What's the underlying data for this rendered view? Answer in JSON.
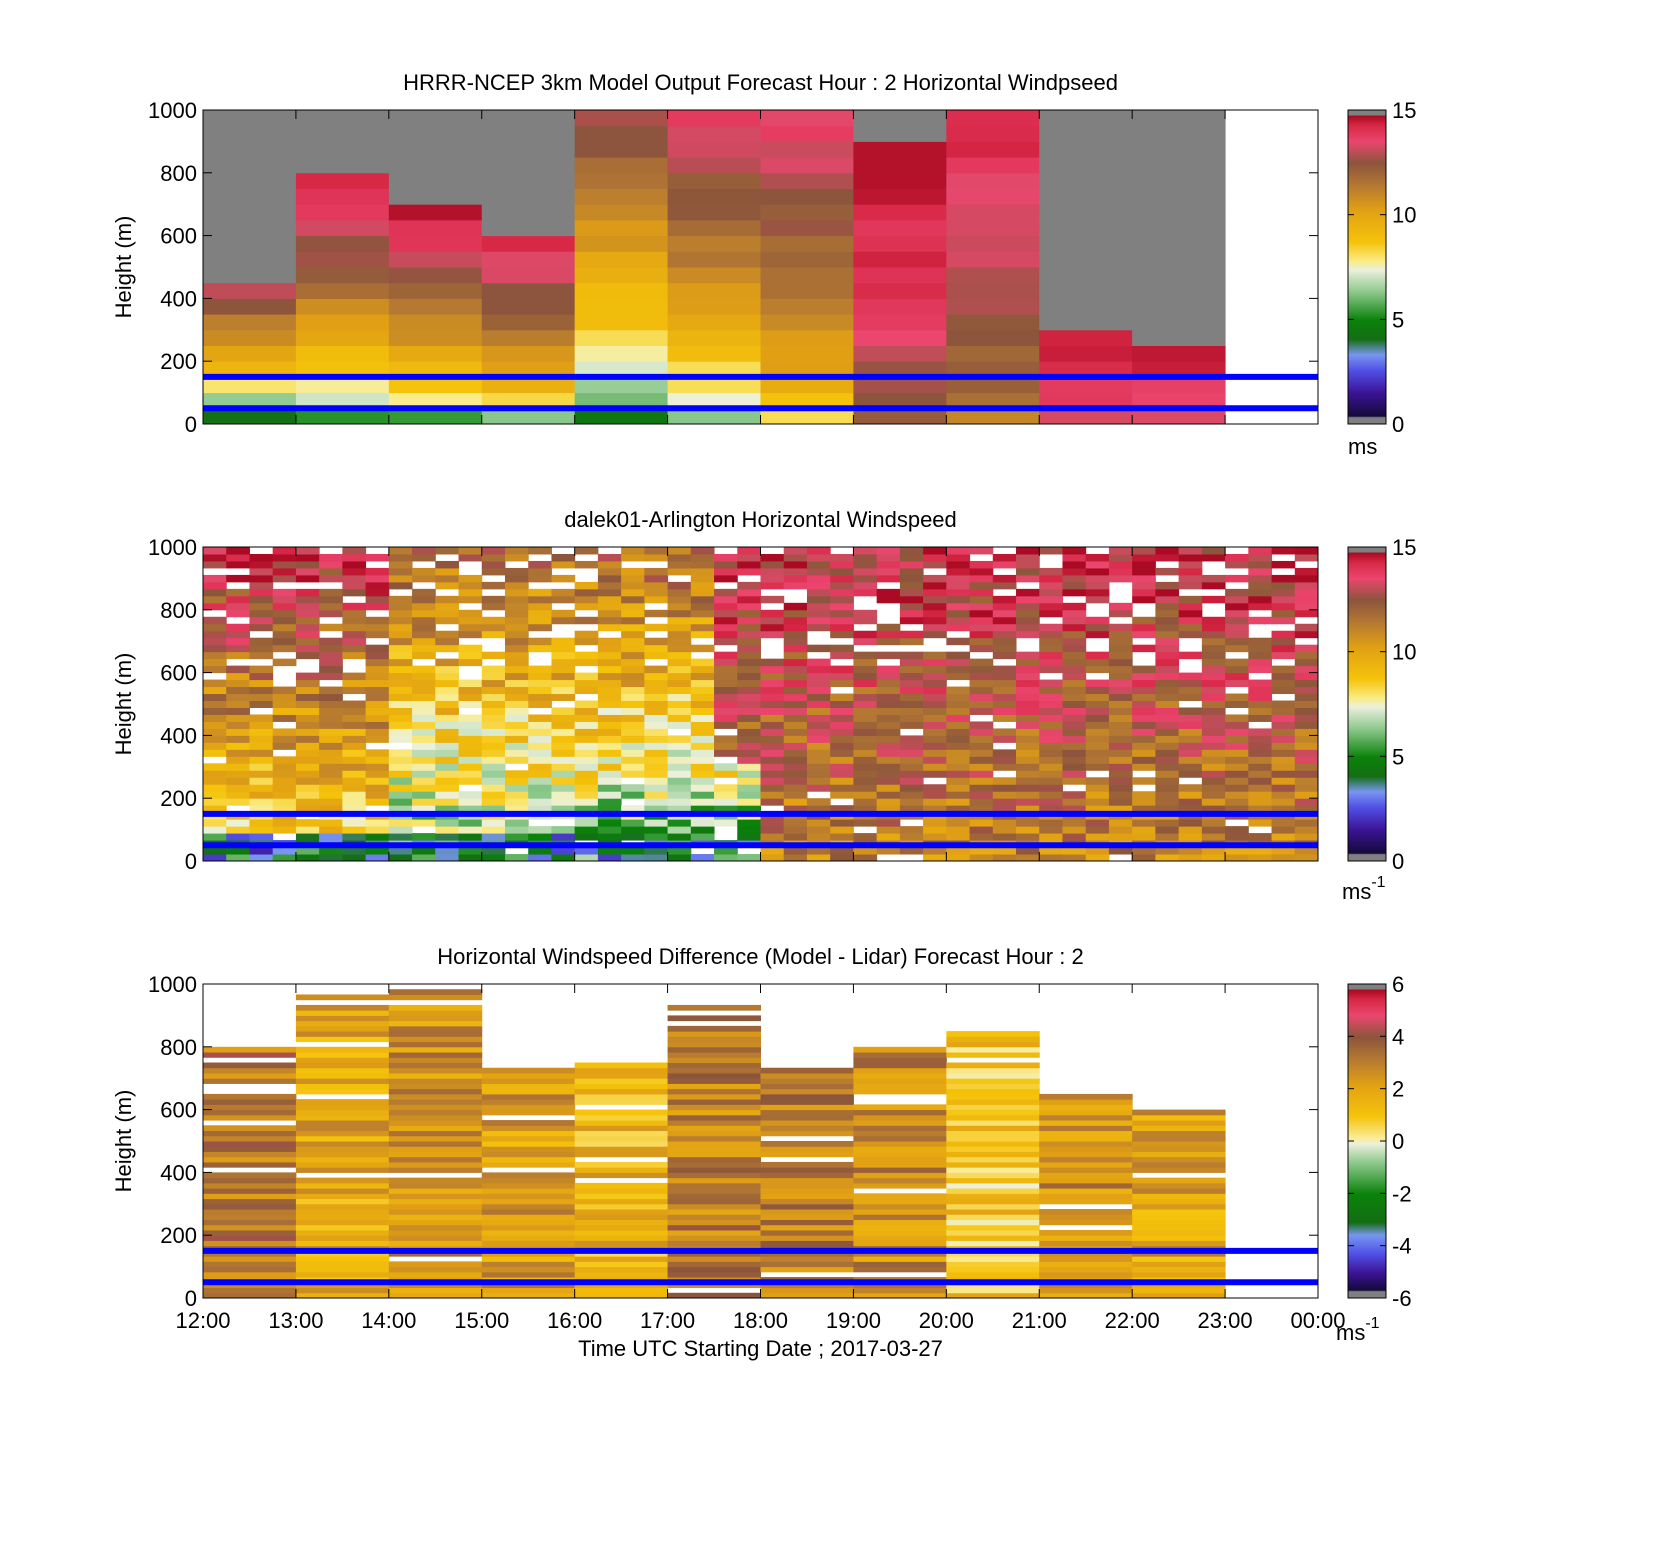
{
  "chart_data": [
    {
      "type": "heatmap",
      "title": "HRRR-NCEP 3km Model Output   Forecast Hour : 2 Horizontal Windpseed",
      "ylabel": "Height (m)",
      "xlabel": "",
      "x_ticks": [],
      "ylim": [
        0,
        1000
      ],
      "y_ticks": [
        "0",
        "200",
        "400",
        "600",
        "800",
        "1000"
      ],
      "colorbar": {
        "range": [
          0,
          15
        ],
        "ticks": [
          "0",
          "5",
          "10",
          "15"
        ],
        "unit_base": "ms",
        "unit_exp": ""
      },
      "mode": "model",
      "x_hours": [
        12,
        13,
        14,
        15,
        16,
        17,
        18,
        19,
        20,
        21,
        22,
        23
      ],
      "columns": [
        {
          "hour": 12,
          "top": 450,
          "surface": 4,
          "peak": 13.5
        },
        {
          "hour": 13,
          "top": 800,
          "surface": 5,
          "peak": 14.8
        },
        {
          "hour": 14,
          "top": 700,
          "surface": 5.5,
          "peak": 14.8
        },
        {
          "hour": 15,
          "top": 600,
          "surface": 6.5,
          "peak": 14.5
        },
        {
          "hour": 16,
          "top": 1000,
          "surface": 4.5,
          "peak": 13.0
        },
        {
          "hour": 17,
          "top": 1000,
          "surface": 6,
          "peak": 13.8
        },
        {
          "hour": 18,
          "top": 1000,
          "surface": 8,
          "peak": 13.8
        },
        {
          "hour": 19,
          "top": 900,
          "surface": 12,
          "peak": 14.9
        },
        {
          "hour": 20,
          "top": 1000,
          "surface": 11,
          "peak": 14.2
        },
        {
          "hour": 21,
          "top": 300,
          "surface": 13,
          "peak": 14.8
        },
        {
          "hour": 22,
          "top": 250,
          "surface": 13,
          "peak": 14.8
        }
      ],
      "reference_lines_m": [
        50,
        150
      ]
    },
    {
      "type": "heatmap",
      "title": "dalek01-Arlington  Horizontal Windspeed",
      "ylabel": "Height (m)",
      "xlabel": "",
      "x_ticks": [],
      "ylim": [
        0,
        1000
      ],
      "y_ticks": [
        "0",
        "200",
        "400",
        "600",
        "800",
        "1000"
      ],
      "colorbar": {
        "range": [
          0,
          15
        ],
        "ticks": [
          "0",
          "5",
          "10",
          "15"
        ],
        "unit_base": "ms",
        "unit_exp": "-1"
      },
      "mode": "lidar",
      "x_hours": [
        12,
        13,
        14,
        15,
        16,
        17,
        18,
        19,
        20,
        21,
        22,
        23
      ],
      "reference_lines_m": [
        50,
        150
      ]
    },
    {
      "type": "heatmap",
      "title": "Horizontal Windspeed Difference (Model - Lidar) Forecast Hour : 2",
      "ylabel": "Height (m)",
      "xlabel": "Time UTC  Starting Date ; 2017-03-27",
      "x_ticks": [
        "12:00",
        "13:00",
        "14:00",
        "15:00",
        "16:00",
        "17:00",
        "18:00",
        "19:00",
        "20:00",
        "21:00",
        "22:00",
        "23:00",
        "00:00"
      ],
      "ylim": [
        0,
        1000
      ],
      "y_ticks": [
        "0",
        "200",
        "400",
        "600",
        "800",
        "1000"
      ],
      "colorbar": {
        "range": [
          -6,
          6
        ],
        "ticks": [
          "-6",
          "-4",
          "-2",
          "0",
          "2",
          "4",
          "6"
        ],
        "unit_base": "ms",
        "unit_exp": "-1"
      },
      "mode": "diff",
      "x_hours": [
        12,
        13,
        14,
        15,
        16,
        17,
        18,
        19,
        20,
        21,
        22,
        23
      ],
      "columns": [
        {
          "hour": 12,
          "top": 800,
          "mean": 3.2
        },
        {
          "hour": 13,
          "top": 960,
          "mean": 1.8
        },
        {
          "hour": 14,
          "top": 1000,
          "mean": 2.5
        },
        {
          "hour": 15,
          "top": 720,
          "mean": 2.2
        },
        {
          "hour": 16,
          "top": 750,
          "mean": 1.5
        },
        {
          "hour": 17,
          "top": 930,
          "mean": 3.0
        },
        {
          "hour": 18,
          "top": 720,
          "mean": 3.0
        },
        {
          "hour": 19,
          "top": 800,
          "mean": 2.6
        },
        {
          "hour": 20,
          "top": 840,
          "mean": 1.0
        },
        {
          "hour": 21,
          "top": 650,
          "mean": 2.5
        },
        {
          "hour": 22,
          "top": 590,
          "mean": 2.0
        }
      ],
      "reference_lines_m": [
        50,
        150
      ]
    }
  ]
}
